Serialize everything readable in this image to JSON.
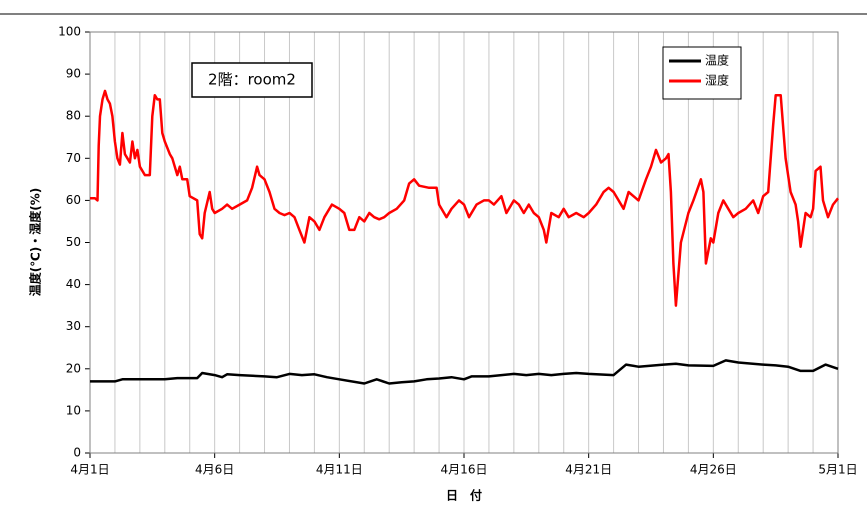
{
  "chart_data": {
    "type": "line",
    "annotation": "2階：room2",
    "xlabel": "日　付",
    "ylabel": "温度(℃)・湿度(%)",
    "xlim": [
      0,
      30
    ],
    "xticks": [
      {
        "value": 0,
        "label": "4月1日"
      },
      {
        "value": 5,
        "label": "4月6日"
      },
      {
        "value": 10,
        "label": "4月11日"
      },
      {
        "value": 15,
        "label": "4月16日"
      },
      {
        "value": 20,
        "label": "4月21日"
      },
      {
        "value": 25,
        "label": "4月26日"
      },
      {
        "value": 30,
        "label": "5月1日"
      }
    ],
    "xminorticks": [
      0,
      1,
      2,
      3,
      4,
      5,
      6,
      7,
      8,
      9,
      10,
      11,
      12,
      13,
      14,
      15,
      16,
      17,
      18,
      19,
      20,
      21,
      22,
      23,
      24,
      25,
      26,
      27,
      28,
      29,
      30
    ],
    "ylim": [
      0,
      100
    ],
    "yticks": [
      0,
      10,
      20,
      30,
      40,
      50,
      60,
      70,
      80,
      90,
      100
    ],
    "grid": true,
    "legend": "upper right",
    "series": [
      {
        "name": "温度",
        "color": "#000000",
        "x": [
          0,
          1,
          1.3,
          2,
          3,
          3.5,
          4.3,
          4.5,
          5,
          5.3,
          5.5,
          6,
          7,
          7.5,
          8,
          8.5,
          9,
          9.5,
          10,
          11,
          11.5,
          12,
          12.5,
          13,
          13.5,
          14,
          14.5,
          15,
          15.3,
          16,
          17,
          17.5,
          18,
          18.5,
          19,
          19.5,
          20,
          21,
          21.5,
          22,
          23,
          23.5,
          24,
          25,
          25.5,
          26,
          27,
          27.5,
          28,
          28.5,
          29,
          29.5,
          30
        ],
        "values": [
          17,
          17,
          17.5,
          17.5,
          17.5,
          17.8,
          17.8,
          19,
          18.5,
          18,
          18.7,
          18.5,
          18.2,
          18,
          18.8,
          18.5,
          18.7,
          18,
          17.5,
          16.5,
          17.5,
          16.5,
          16.8,
          17,
          17.5,
          17.7,
          18,
          17.5,
          18.2,
          18.2,
          18.8,
          18.5,
          18.8,
          18.5,
          18.8,
          19,
          18.8,
          18.5,
          21,
          20.5,
          21,
          21.2,
          20.8,
          20.7,
          22,
          21.5,
          21,
          20.8,
          20.5,
          19.5,
          19.5,
          21,
          20
        ]
      },
      {
        "name": "湿度",
        "color": "#ff0000",
        "x": [
          0,
          0.2,
          0.3,
          0.35,
          0.4,
          0.5,
          0.6,
          0.7,
          0.8,
          0.9,
          1.0,
          1.1,
          1.2,
          1.3,
          1.4,
          1.5,
          1.6,
          1.7,
          1.8,
          1.9,
          2.0,
          2.2,
          2.4,
          2.5,
          2.6,
          2.7,
          2.8,
          2.9,
          3.0,
          3.2,
          3.3,
          3.5,
          3.6,
          3.7,
          3.9,
          4.0,
          4.3,
          4.4,
          4.5,
          4.6,
          4.8,
          4.9,
          5.0,
          5.3,
          5.5,
          5.7,
          6.0,
          6.3,
          6.5,
          6.7,
          6.8,
          7.0,
          7.2,
          7.4,
          7.6,
          7.8,
          8.0,
          8.2,
          8.4,
          8.6,
          8.8,
          9.0,
          9.2,
          9.4,
          9.7,
          10.0,
          10.2,
          10.4,
          10.6,
          10.8,
          11.0,
          11.2,
          11.4,
          11.6,
          11.8,
          12.0,
          12.3,
          12.6,
          12.8,
          13.0,
          13.2,
          13.6,
          13.9,
          14.0,
          14.3,
          14.5,
          14.8,
          15.0,
          15.2,
          15.5,
          15.8,
          16.0,
          16.2,
          16.5,
          16.7,
          17.0,
          17.2,
          17.4,
          17.6,
          17.8,
          18.0,
          18.2,
          18.3,
          18.5,
          18.8,
          19.0,
          19.2,
          19.5,
          19.8,
          20.0,
          20.3,
          20.6,
          20.8,
          21.0,
          21.2,
          21.4,
          21.6,
          21.8,
          22.0,
          22.3,
          22.5,
          22.7,
          22.9,
          23.1,
          23.2,
          23.3,
          23.4,
          23.5,
          23.7,
          24.0,
          24.2,
          24.5,
          24.6,
          24.7,
          24.9,
          25.0,
          25.2,
          25.4,
          25.6,
          25.8,
          26.0,
          26.3,
          26.6,
          26.8,
          27.0,
          27.2,
          27.4,
          27.5,
          27.7,
          27.9,
          28.1,
          28.3,
          28.4,
          28.5,
          28.7,
          28.9,
          29.0,
          29.1,
          29.3,
          29.4,
          29.6,
          29.8,
          30.0
        ],
        "values": [
          60.5,
          60.5,
          60,
          73,
          80,
          84,
          86,
          84,
          83,
          80,
          74,
          70,
          68.5,
          76,
          71,
          70,
          69,
          74,
          70,
          72,
          68,
          66,
          66,
          80,
          85,
          84,
          84,
          76,
          74,
          71,
          70,
          66,
          68,
          65,
          65,
          61,
          60,
          52,
          51,
          57,
          62,
          58,
          57,
          58,
          59,
          58,
          59,
          60,
          63,
          68,
          66,
          65,
          62,
          58,
          57,
          56.5,
          57,
          56,
          53,
          50,
          56,
          55,
          53,
          56,
          59,
          58,
          57,
          53,
          53,
          56,
          55,
          57,
          56,
          55.5,
          56,
          57,
          58,
          60,
          64,
          65,
          63.5,
          63,
          63,
          59,
          56,
          58,
          60,
          59,
          56,
          59,
          60,
          60,
          59,
          61,
          57,
          60,
          59,
          57,
          59,
          57,
          56,
          53,
          50,
          57,
          56,
          58,
          56,
          57,
          56,
          57,
          59,
          62,
          63,
          62,
          60,
          58,
          62,
          61,
          60,
          65,
          68,
          72,
          69,
          70,
          71,
          62,
          45,
          35,
          50,
          57,
          60,
          65,
          62,
          45,
          51,
          50,
          57,
          60,
          58,
          56,
          57,
          58,
          60,
          57,
          61,
          62,
          78,
          85,
          85,
          70,
          62,
          59,
          55,
          49,
          57,
          56,
          58,
          67,
          68,
          60,
          56,
          59,
          60.5
        ]
      }
    ]
  }
}
